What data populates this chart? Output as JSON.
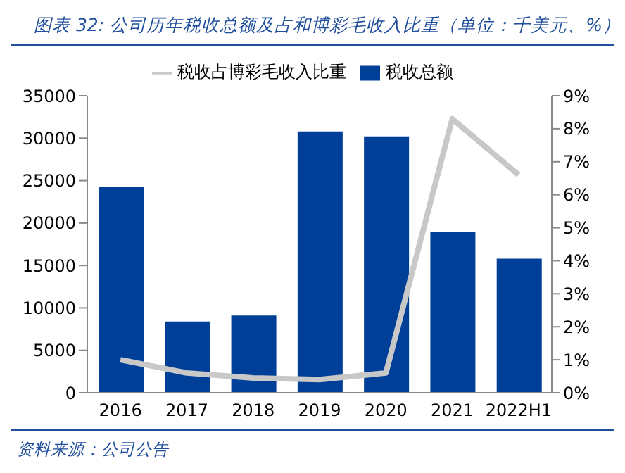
{
  "chart_data": {
    "type": "bar",
    "title": "图表 32: 公司历年税收总额及占和博彩毛收入比重（单位：千美元、%）",
    "categories": [
      "2016",
      "2017",
      "2018",
      "2019",
      "2020",
      "2021",
      "2022H1"
    ],
    "series": [
      {
        "name": "税收总额",
        "color": "#003f98",
        "values": [
          24300,
          8400,
          9100,
          30800,
          30200,
          18900,
          15800
        ]
      },
      {
        "name": "税收占博彩毛收入比重",
        "type": "line",
        "axis": "y2",
        "color": "#c8c8c8",
        "values": [
          1.0,
          0.6,
          0.45,
          0.4,
          0.6,
          8.3,
          6.6
        ]
      }
    ],
    "ylim": [
      0,
      35000
    ],
    "yticks": [
      0,
      5000,
      10000,
      15000,
      20000,
      25000,
      30000,
      35000
    ],
    "y2lim": [
      0,
      9
    ],
    "y2ticks": [
      {
        "value": 0,
        "label": "0%"
      },
      {
        "value": 1,
        "label": "1%"
      },
      {
        "value": 2,
        "label": "2%"
      },
      {
        "value": 3,
        "label": "3%"
      },
      {
        "value": 4,
        "label": "4%"
      },
      {
        "value": 5,
        "label": "5%"
      },
      {
        "value": 6,
        "label": "6%"
      },
      {
        "value": 7,
        "label": "7%"
      },
      {
        "value": 8,
        "label": "8%"
      },
      {
        "value": 9,
        "label": "9%"
      }
    ],
    "grid": false,
    "legend": "top",
    "marker": "none",
    "annotations": [
      "资料来源：公司公告"
    ]
  }
}
